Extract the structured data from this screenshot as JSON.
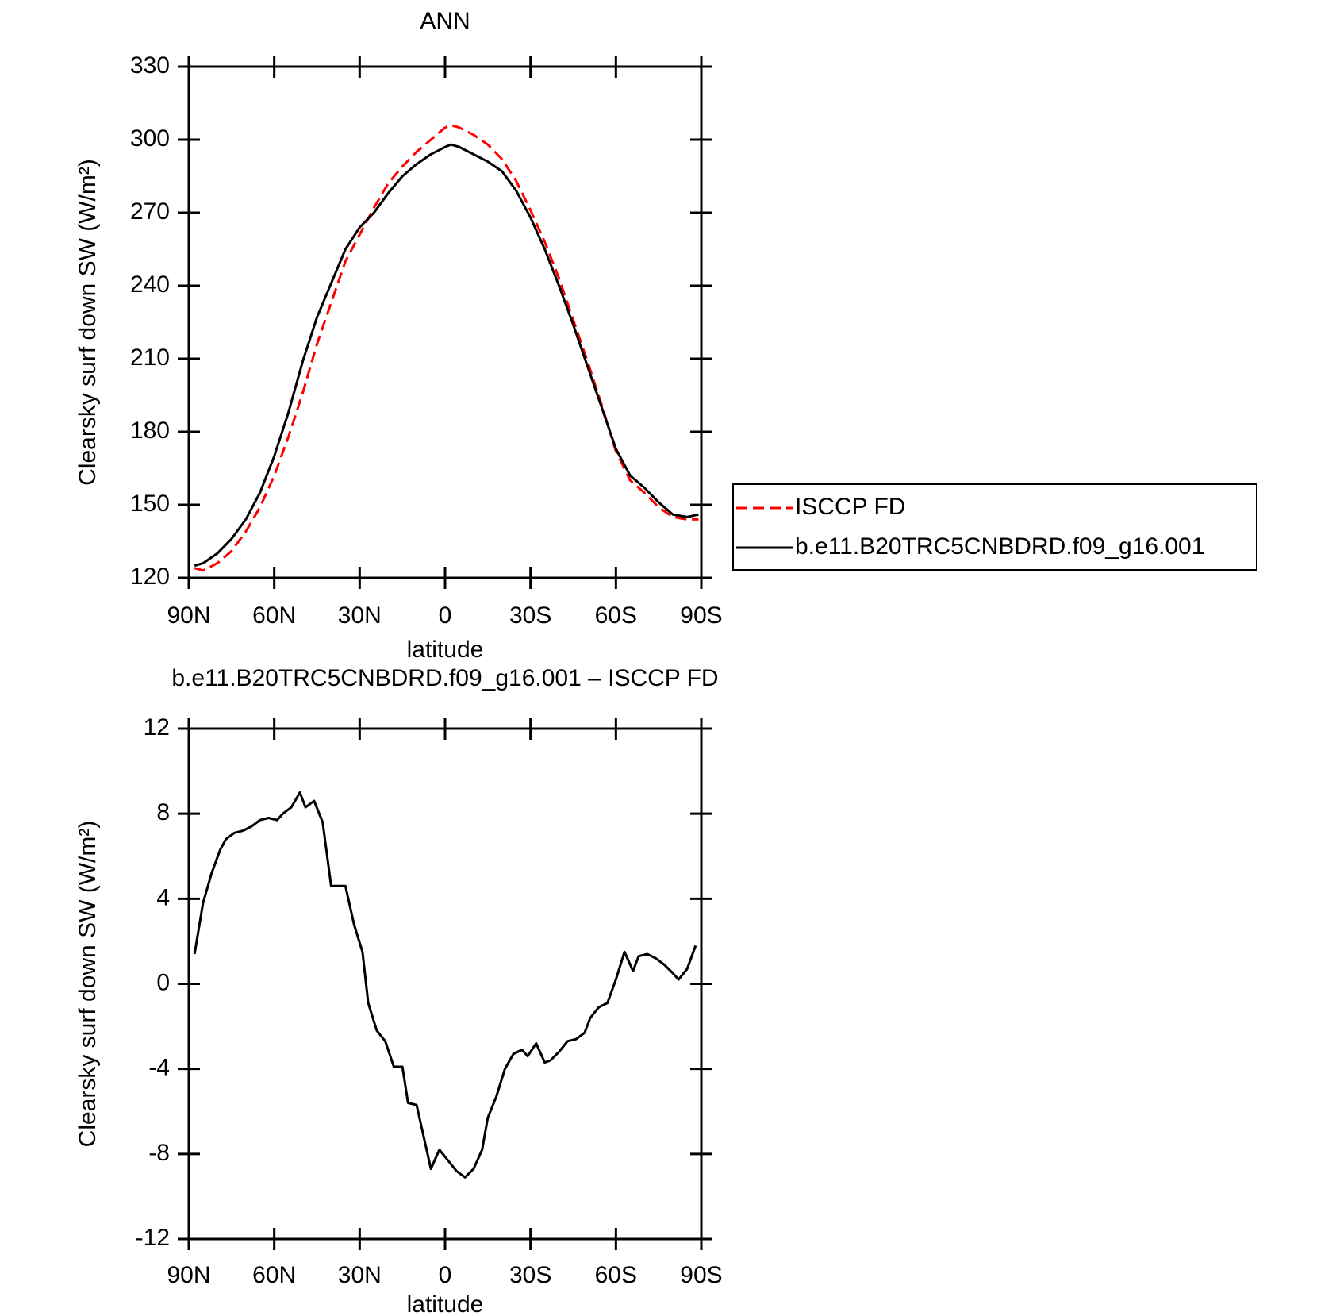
{
  "chart_data": [
    {
      "type": "line",
      "title": "ANN",
      "xlabel": "latitude",
      "ylabel": "Clearsky surf down SW (W/m²)",
      "x": [
        88,
        85,
        80,
        75,
        70,
        65,
        60,
        55,
        50,
        45,
        40,
        35,
        30,
        25,
        20,
        15,
        10,
        5,
        0,
        -2,
        -5,
        -10,
        -15,
        -20,
        -25,
        -30,
        -35,
        -40,
        -45,
        -50,
        -55,
        -60,
        -65,
        -70,
        -75,
        -80,
        -85,
        -89
      ],
      "series": [
        {
          "name": "ISCCP FD",
          "color": "#ff0000",
          "style": "dashed",
          "values": [
            124,
            123,
            126,
            131,
            139,
            149,
            162,
            178,
            196,
            216,
            233,
            250,
            261,
            272,
            282,
            289,
            295,
            300,
            305,
            306,
            305,
            302,
            298,
            292,
            283,
            271,
            258,
            243,
            226,
            209,
            191,
            172,
            160,
            155,
            149,
            145,
            144,
            144
          ]
        },
        {
          "name": "b.e11.B20TRC5CNBDRD.f09_g16.001",
          "color": "#000000",
          "style": "solid",
          "values": [
            125,
            126,
            130,
            136,
            144,
            155,
            170,
            188,
            209,
            227,
            241,
            255,
            264,
            270,
            278,
            285,
            290,
            294,
            297,
            298,
            297,
            294,
            291,
            287,
            279,
            268,
            255,
            240,
            224,
            207,
            190,
            173,
            162,
            157,
            151,
            146,
            145,
            146
          ]
        }
      ],
      "xlim": [
        90,
        -90
      ],
      "xticks": [
        {
          "value": 90,
          "label": "90N"
        },
        {
          "value": 60,
          "label": "60N"
        },
        {
          "value": 30,
          "label": "30N"
        },
        0,
        {
          "value": -30,
          "label": "30S"
        },
        {
          "value": -60,
          "label": "60S"
        },
        {
          "value": -90,
          "label": "90S"
        }
      ],
      "ylim": [
        120,
        330
      ],
      "yticks": [
        120,
        150,
        180,
        210,
        240,
        270,
        300,
        330
      ],
      "legend": "right"
    },
    {
      "type": "line",
      "title": "b.e11.B20TRC5CNBDRD.f09_g16.001 – ISCCP FD",
      "xlabel": "latitude",
      "ylabel": "Clearsky surf down SW (W/m²)",
      "x": [
        88,
        85,
        82,
        79,
        77,
        74,
        71,
        68,
        65,
        62,
        59,
        57,
        54,
        51,
        49,
        46,
        43,
        40,
        38,
        35,
        32,
        29,
        27,
        24,
        21,
        18,
        15,
        13,
        10,
        7,
        5,
        2,
        -1,
        -4,
        -7,
        -10,
        -13,
        -15,
        -18,
        -21,
        -24,
        -27,
        -29,
        -32,
        -35,
        -37,
        -40,
        -43,
        -46,
        -49,
        -51,
        -54,
        -57,
        -60,
        -63,
        -66,
        -68,
        -71,
        -74,
        -77,
        -80,
        -82,
        -85,
        -88
      ],
      "series": [
        {
          "name": null,
          "color": "#000000",
          "style": "solid",
          "values": [
            1.4,
            3.8,
            5.2,
            6.3,
            6.8,
            7.1,
            7.2,
            7.4,
            7.7,
            7.8,
            7.7,
            8.0,
            8.3,
            9.0,
            8.3,
            8.6,
            7.6,
            4.6,
            4.6,
            4.6,
            2.8,
            1.5,
            -0.9,
            -2.2,
            -2.7,
            -3.9,
            -3.9,
            -5.6,
            -5.7,
            -7.5,
            -8.7,
            -7.8,
            -8.3,
            -8.8,
            -9.1,
            -8.7,
            -7.8,
            -6.3,
            -5.3,
            -4.0,
            -3.3,
            -3.1,
            -3.4,
            -2.8,
            -3.7,
            -3.6,
            -3.2,
            -2.7,
            -2.6,
            -2.3,
            -1.6,
            -1.1,
            -0.9,
            0.2,
            1.5,
            0.6,
            1.3,
            1.4,
            1.2,
            0.9,
            0.5,
            0.2,
            0.7,
            1.8
          ]
        }
      ],
      "xlim": [
        90,
        -90
      ],
      "xticks": [
        {
          "value": 90,
          "label": "90N"
        },
        {
          "value": 60,
          "label": "60N"
        },
        {
          "value": 30,
          "label": "30N"
        },
        0,
        {
          "value": -30,
          "label": "30S"
        },
        {
          "value": -60,
          "label": "60S"
        },
        {
          "value": -90,
          "label": "90S"
        }
      ],
      "ylim": [
        -12,
        12
      ],
      "yticks": [
        -12,
        -8,
        -4,
        0,
        4,
        8,
        12
      ]
    }
  ]
}
